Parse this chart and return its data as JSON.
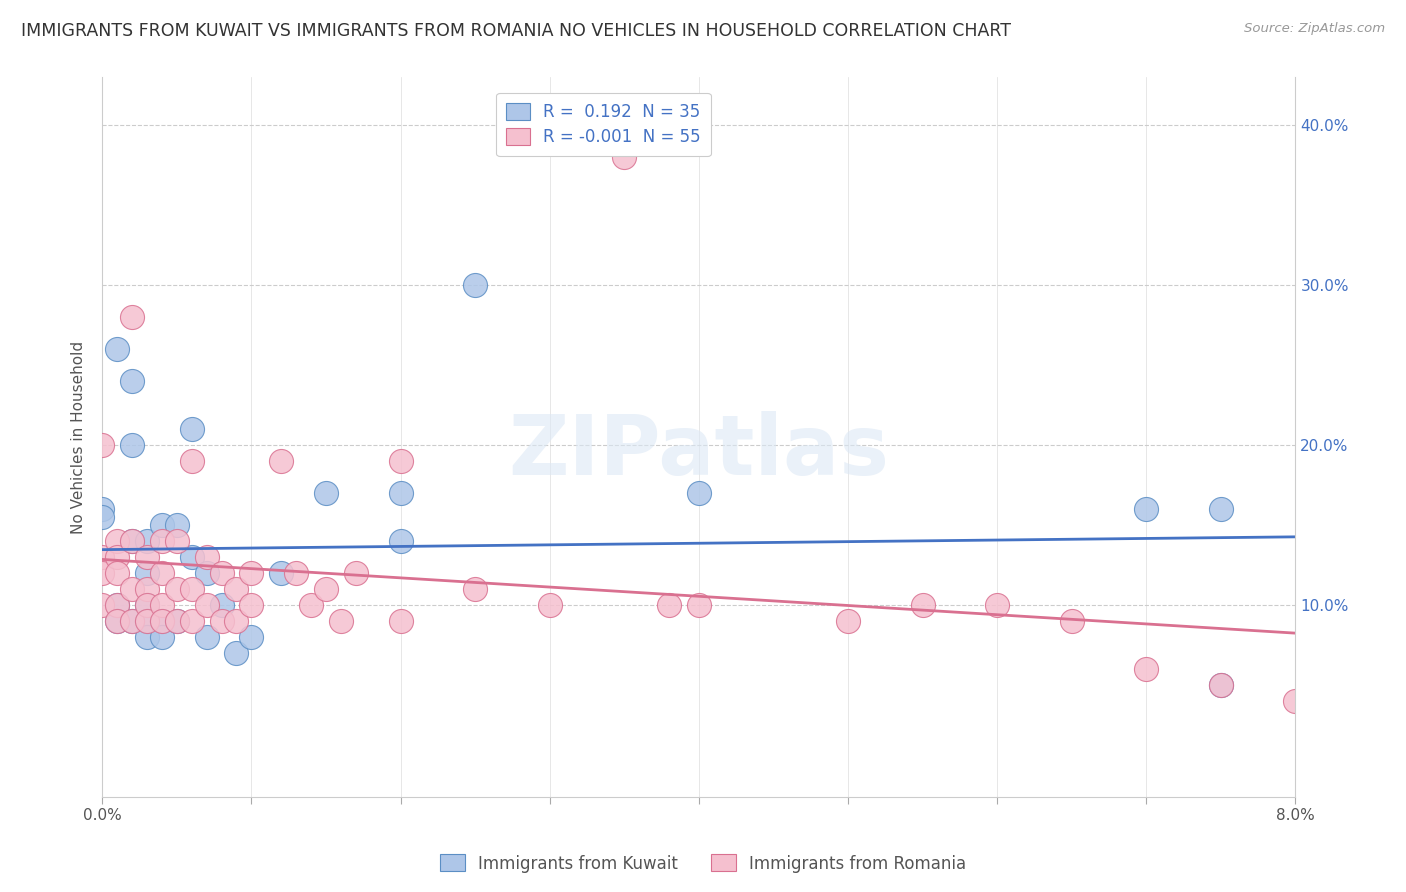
{
  "title": "IMMIGRANTS FROM KUWAIT VS IMMIGRANTS FROM ROMANIA NO VEHICLES IN HOUSEHOLD CORRELATION CHART",
  "source": "Source: ZipAtlas.com",
  "ylabel": "No Vehicles in Household",
  "xlim": [
    0.0,
    0.08
  ],
  "ylim": [
    -0.02,
    0.43
  ],
  "xticks": [
    0.0,
    0.01,
    0.02,
    0.03,
    0.04,
    0.05,
    0.06,
    0.07,
    0.08
  ],
  "xtick_labels": [
    "0.0%",
    "",
    "",
    "",
    "",
    "",
    "",
    "",
    "8.0%"
  ],
  "yticks_right": [
    0.1,
    0.2,
    0.3,
    0.4
  ],
  "ytick_labels_right": [
    "10.0%",
    "20.0%",
    "30.0%",
    "40.0%"
  ],
  "kuwait_color": "#aec6e8",
  "kuwait_edge_color": "#5b8ec4",
  "romania_color": "#f5c0cf",
  "romania_edge_color": "#d97090",
  "kuwait_line_color": "#4472c4",
  "romania_line_color": "#d97090",
  "kuwait_R": 0.192,
  "kuwait_N": 35,
  "romania_R": -0.001,
  "romania_N": 55,
  "watermark_text": "ZIPatlas",
  "background_color": "#ffffff",
  "grid_color": "#cccccc",
  "kuwait_x": [
    0.0,
    0.0,
    0.001,
    0.001,
    0.001,
    0.002,
    0.002,
    0.002,
    0.002,
    0.003,
    0.003,
    0.003,
    0.003,
    0.003,
    0.004,
    0.004,
    0.004,
    0.005,
    0.005,
    0.006,
    0.006,
    0.007,
    0.007,
    0.008,
    0.009,
    0.01,
    0.012,
    0.015,
    0.02,
    0.025,
    0.04,
    0.07,
    0.075,
    0.075,
    0.02
  ],
  "kuwait_y": [
    0.16,
    0.155,
    0.26,
    0.1,
    0.09,
    0.24,
    0.2,
    0.14,
    0.09,
    0.14,
    0.12,
    0.1,
    0.09,
    0.08,
    0.15,
    0.09,
    0.08,
    0.15,
    0.09,
    0.21,
    0.13,
    0.12,
    0.08,
    0.1,
    0.07,
    0.08,
    0.12,
    0.17,
    0.17,
    0.3,
    0.17,
    0.16,
    0.16,
    0.05,
    0.14
  ],
  "romania_x": [
    0.0,
    0.0,
    0.0,
    0.0,
    0.001,
    0.001,
    0.001,
    0.001,
    0.001,
    0.002,
    0.002,
    0.002,
    0.002,
    0.003,
    0.003,
    0.003,
    0.003,
    0.004,
    0.004,
    0.004,
    0.004,
    0.005,
    0.005,
    0.005,
    0.006,
    0.006,
    0.006,
    0.007,
    0.007,
    0.008,
    0.008,
    0.009,
    0.009,
    0.01,
    0.01,
    0.012,
    0.013,
    0.014,
    0.015,
    0.016,
    0.017,
    0.02,
    0.02,
    0.025,
    0.03,
    0.035,
    0.038,
    0.04,
    0.05,
    0.055,
    0.06,
    0.065,
    0.07,
    0.075,
    0.08
  ],
  "romania_y": [
    0.2,
    0.13,
    0.12,
    0.1,
    0.14,
    0.13,
    0.12,
    0.1,
    0.09,
    0.28,
    0.14,
    0.11,
    0.09,
    0.13,
    0.11,
    0.1,
    0.09,
    0.14,
    0.12,
    0.1,
    0.09,
    0.14,
    0.11,
    0.09,
    0.19,
    0.11,
    0.09,
    0.13,
    0.1,
    0.12,
    0.09,
    0.11,
    0.09,
    0.12,
    0.1,
    0.19,
    0.12,
    0.1,
    0.11,
    0.09,
    0.12,
    0.19,
    0.09,
    0.11,
    0.1,
    0.38,
    0.1,
    0.1,
    0.09,
    0.1,
    0.1,
    0.09,
    0.06,
    0.05,
    0.04
  ]
}
